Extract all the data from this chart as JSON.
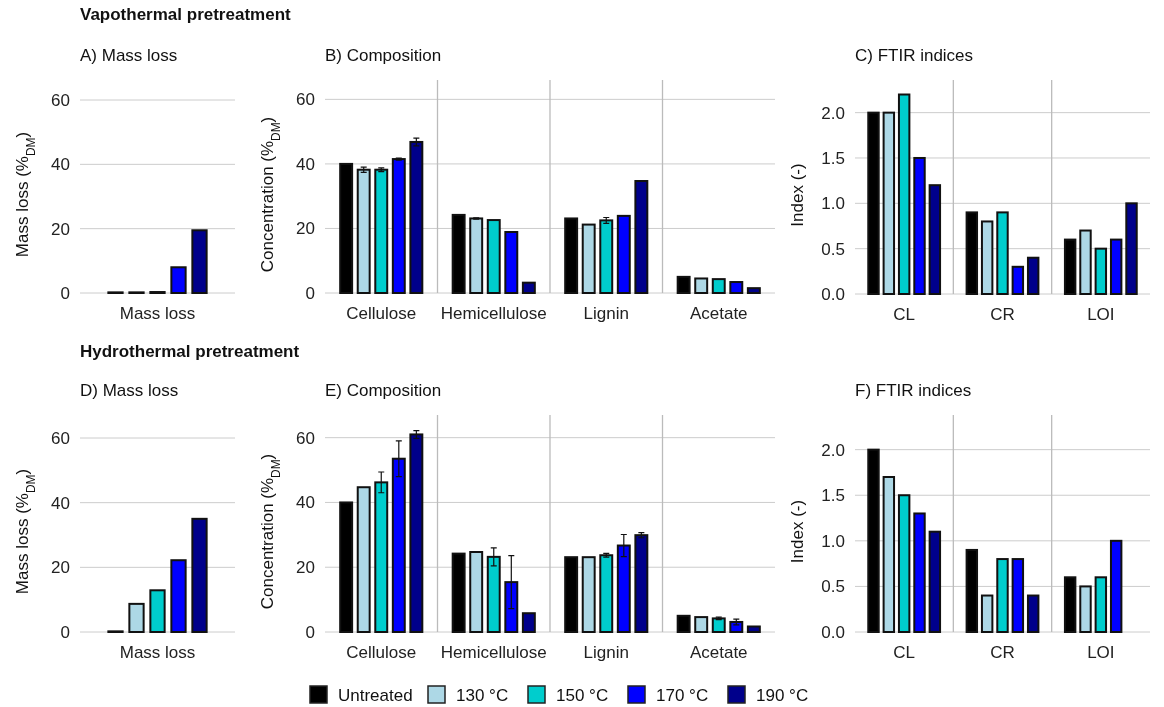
{
  "chart_data": [
    {
      "type": "bar",
      "title": "A) Mass loss",
      "ylabel": "Mass loss (%$_{DM}$)",
      "annotations": [
        "Vapothermal pretreatment"
      ],
      "categories": [
        "Mass loss"
      ],
      "ylim": [
        0,
        60
      ],
      "yticks": [
        0,
        20,
        40,
        60
      ],
      "grid": "y",
      "legend": false,
      "series": [
        {
          "color": "#000000",
          "values": [
            0.2
          ]
        },
        {
          "color": "#add8e6",
          "values": [
            0.2
          ]
        },
        {
          "color": "#00cdcd",
          "values": [
            0.3
          ]
        },
        {
          "color": "#0000ff",
          "values": [
            8
          ]
        },
        {
          "color": "#00008b",
          "values": [
            19.5
          ]
        }
      ]
    },
    {
      "type": "bar",
      "title": "B) Composition",
      "ylabel": "Concentration (%$_{DM}$)",
      "categories": [
        "Cellulose",
        "Hemicellulose",
        "Lignin",
        "Acetate"
      ],
      "ylim": [
        0,
        66
      ],
      "yticks": [
        0,
        20,
        40,
        60
      ],
      "grid": true,
      "legend": false,
      "series": [
        {
          "color": "#000000",
          "values": [
            40,
            24.2,
            23.1,
            5
          ],
          "errors": [
            null,
            null,
            null,
            null
          ]
        },
        {
          "color": "#add8e6",
          "values": [
            38.2,
            23.1,
            21.2,
            4.5
          ],
          "errors": [
            0.8,
            0.2,
            null,
            null
          ]
        },
        {
          "color": "#00cdcd",
          "values": [
            38.2,
            22.6,
            22.5,
            4.3
          ],
          "errors": [
            0.6,
            null,
            0.9,
            null
          ]
        },
        {
          "color": "#0000ff",
          "values": [
            41.5,
            18.9,
            23.9,
            3.4
          ],
          "errors": [
            0.3,
            null,
            null,
            null
          ]
        },
        {
          "color": "#00008b",
          "values": [
            46.8,
            3.2,
            34.7,
            1.5
          ],
          "errors": [
            1.2,
            null,
            null,
            null
          ]
        }
      ]
    },
    {
      "type": "bar",
      "title": "C) FTIR indices",
      "ylabel": "Index (-)",
      "categories": [
        "CL",
        "CR",
        "LOI"
      ],
      "ylim": [
        0,
        2.36
      ],
      "yticks": [
        {
          "value": 0,
          "label": "0.0"
        },
        0.5,
        {
          "value": 1,
          "label": "1.0"
        },
        1.5,
        {
          "value": 2,
          "label": "2.0"
        }
      ],
      "grid": true,
      "legend": false,
      "series": [
        {
          "color": "#000000",
          "values": [
            2.0,
            0.9,
            0.6
          ]
        },
        {
          "color": "#add8e6",
          "values": [
            2.0,
            0.8,
            0.7
          ]
        },
        {
          "color": "#00cdcd",
          "values": [
            2.2,
            0.9,
            0.5
          ]
        },
        {
          "color": "#0000ff",
          "values": [
            1.5,
            0.3,
            0.6
          ]
        },
        {
          "color": "#00008b",
          "values": [
            1.2,
            0.4,
            1.0
          ]
        }
      ]
    },
    {
      "type": "bar",
      "title": "D) Mass loss",
      "ylabel": "Mass loss (%$_{DM}$)",
      "annotations": [
        "Hydrothermal pretreatment"
      ],
      "categories": [
        "Mass loss"
      ],
      "ylim": [
        0,
        60
      ],
      "yticks": [
        0,
        20,
        40,
        60
      ],
      "grid": "y",
      "legend": false,
      "series": [
        {
          "color": "#000000",
          "values": [
            0.2
          ]
        },
        {
          "color": "#add8e6",
          "values": [
            8.7
          ]
        },
        {
          "color": "#00cdcd",
          "values": [
            12.9
          ]
        },
        {
          "color": "#0000ff",
          "values": [
            22.2
          ]
        },
        {
          "color": "#00008b",
          "values": [
            35
          ]
        }
      ]
    },
    {
      "type": "bar",
      "title": "E) Composition",
      "ylabel": "Concentration (%$_{DM}$)",
      "categories": [
        "Cellulose",
        "Hemicellulose",
        "Lignin",
        "Acetate"
      ],
      "ylim": [
        0,
        67
      ],
      "yticks": [
        0,
        20,
        40,
        60
      ],
      "grid": true,
      "legend": false,
      "series": [
        {
          "color": "#000000",
          "values": [
            40,
            24.2,
            23.1,
            5
          ],
          "errors": [
            null,
            null,
            null,
            null
          ]
        },
        {
          "color": "#add8e6",
          "values": [
            44.7,
            24.7,
            23.1,
            4.6
          ],
          "errors": [
            null,
            null,
            null,
            null
          ]
        },
        {
          "color": "#00cdcd",
          "values": [
            46.2,
            23.2,
            23.7,
            4.2
          ],
          "errors": [
            3.2,
            2.8,
            0.6,
            0.4
          ]
        },
        {
          "color": "#0000ff",
          "values": [
            53.5,
            15.4,
            26.7,
            3.1
          ],
          "errors": [
            5.5,
            8.2,
            3.4,
            0.9
          ]
        },
        {
          "color": "#00008b",
          "values": [
            61,
            5.8,
            29.9,
            1.7
          ],
          "errors": [
            1.2,
            null,
            0.8,
            null
          ]
        }
      ]
    },
    {
      "type": "bar",
      "title": "F) FTIR indices",
      "ylabel": "Index (-)",
      "categories": [
        "CL",
        "CR",
        "LOI"
      ],
      "ylim": [
        0,
        2.38
      ],
      "yticks": [
        {
          "value": 0,
          "label": "0.0"
        },
        0.5,
        {
          "value": 1,
          "label": "1.0"
        },
        1.5,
        {
          "value": 2,
          "label": "2.0"
        }
      ],
      "grid": true,
      "legend": "bottom",
      "series": [
        {
          "name": "Untreated",
          "color": "#000000",
          "values": [
            2.0,
            0.9,
            0.6
          ]
        },
        {
          "name": "130 °C",
          "color": "#add8e6",
          "values": [
            1.7,
            0.4,
            0.5
          ]
        },
        {
          "name": "150 °C",
          "color": "#00cdcd",
          "values": [
            1.5,
            0.8,
            0.6
          ]
        },
        {
          "name": "170 °C",
          "color": "#0000ff",
          "values": [
            1.3,
            0.8,
            1.0
          ]
        },
        {
          "name": "190 °C",
          "color": "#00008b",
          "values": [
            1.1,
            0.4,
            null
          ]
        }
      ]
    }
  ]
}
